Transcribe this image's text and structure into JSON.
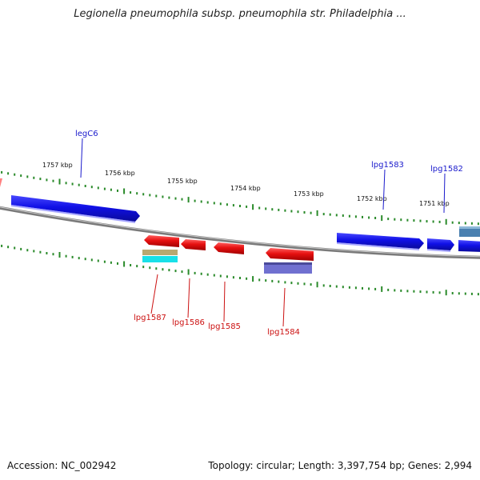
{
  "title": "Legionella pneumophila subsp. pneumophila str. Philadelphia ...",
  "footer": {
    "accession": "Accession: NC_002942",
    "summary": "Topology: circular; Length: 3,397,754 bp; Genes: 2,994"
  },
  "scale_labels": [
    "1757 kbp",
    "1756 kbp",
    "1755 kbp",
    "1754 kbp",
    "1753 kbp",
    "1752 kbp",
    "1751 kbp"
  ],
  "gene_labels": {
    "forward": [
      "legC6",
      "lpg1583",
      "lpg1582"
    ],
    "reverse": [
      "lpg1587",
      "lpg1586",
      "lpg1585",
      "lpg1584"
    ]
  },
  "colors": {
    "forward_gene": "#1010e6",
    "reverse_gene": "#e61010",
    "backbone": "#8c8c8c",
    "tick": "#2a8a2a",
    "forward_label": "#1a1acc",
    "reverse_label": "#cc1111",
    "extra_feature_1": "#b8a870",
    "extra_feature_2": "#18e0e8",
    "extra_feature_3": "#7070d0",
    "extra_feature_4": "#4a80b0"
  }
}
